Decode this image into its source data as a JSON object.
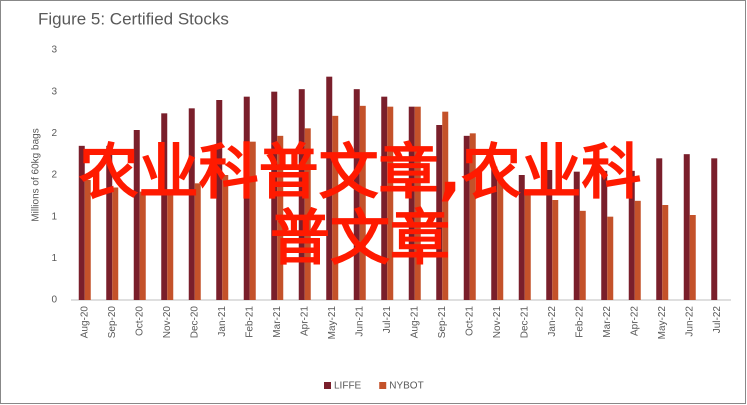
{
  "chart_data": {
    "type": "bar",
    "title": "Figure 5: Certified Stocks",
    "y_label": "Millions of 60kg bags",
    "overlay": "农业科普文章,农业科普文章",
    "categories": [
      "Aug-20",
      "Sep-20",
      "Oct-20",
      "Nov-20",
      "Dec-20",
      "Jan-21",
      "Feb-21",
      "Mar-21",
      "Apr-21",
      "May-21",
      "Jun-21",
      "Jul-21",
      "Aug-21",
      "Sep-21",
      "Oct-21",
      "Nov-21",
      "Dec-21",
      "Jan-22",
      "Feb-22",
      "Mar-22",
      "Apr-22",
      "May-22",
      "Jun-22",
      "Jul-22"
    ],
    "series": [
      {
        "name": "LIFFE",
        "color": "#7a1f2b",
        "values": [
          1.85,
          1.85,
          2.04,
          2.24,
          2.3,
          2.4,
          2.44,
          2.5,
          2.53,
          2.68,
          2.53,
          2.44,
          2.32,
          2.1,
          1.97,
          1.6,
          1.5,
          1.56,
          1.54,
          1.55,
          1.55,
          1.7,
          1.75,
          1.7
        ]
      },
      {
        "name": "NYBOT",
        "color": "#c4522a",
        "values": [
          1.44,
          1.35,
          1.3,
          1.3,
          1.4,
          1.5,
          1.9,
          1.97,
          2.06,
          2.21,
          2.33,
          2.32,
          2.32,
          2.26,
          2.0,
          1.5,
          1.3,
          1.2,
          1.07,
          1.0,
          1.19,
          1.14,
          1.02,
          null
        ]
      }
    ],
    "ylim": [
      0,
      3
    ],
    "yticks": [
      {
        "value": 0,
        "label": "0"
      },
      {
        "value": 0.5,
        "label": "1"
      },
      {
        "value": 1,
        "label": "1"
      },
      {
        "value": 1.5,
        "label": "2"
      },
      {
        "value": 2,
        "label": "2"
      },
      {
        "value": 2.5,
        "label": "3"
      },
      {
        "value": 3,
        "label": "3"
      }
    ],
    "grid": false,
    "legend": "bottom"
  }
}
